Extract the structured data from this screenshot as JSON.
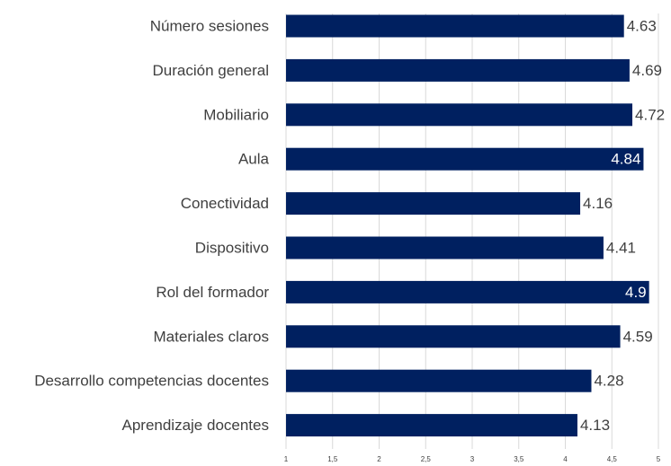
{
  "chart_data": {
    "type": "barh",
    "categories": [
      "Número sesiones",
      "Duración general",
      "Mobiliario",
      "Aula",
      "Conectividad",
      "Dispositivo",
      "Rol del formador",
      "Materiales claros",
      "Desarrollo competencias docentes",
      "Aprendizaje docentes"
    ],
    "values": [
      4.63,
      4.69,
      4.72,
      4.84,
      4.16,
      4.41,
      4.9,
      4.59,
      4.28,
      4.13
    ],
    "color": "#002060",
    "xlim": [
      1,
      5
    ],
    "xticks": [
      1,
      {
        "value": 1.5,
        "label": "1,5"
      },
      2,
      {
        "value": 2.5,
        "label": "2,5"
      },
      3,
      {
        "value": 3.5,
        "label": "3,5"
      },
      4,
      {
        "value": 4.5,
        "label": "4,5"
      },
      5
    ],
    "grid": true
  }
}
